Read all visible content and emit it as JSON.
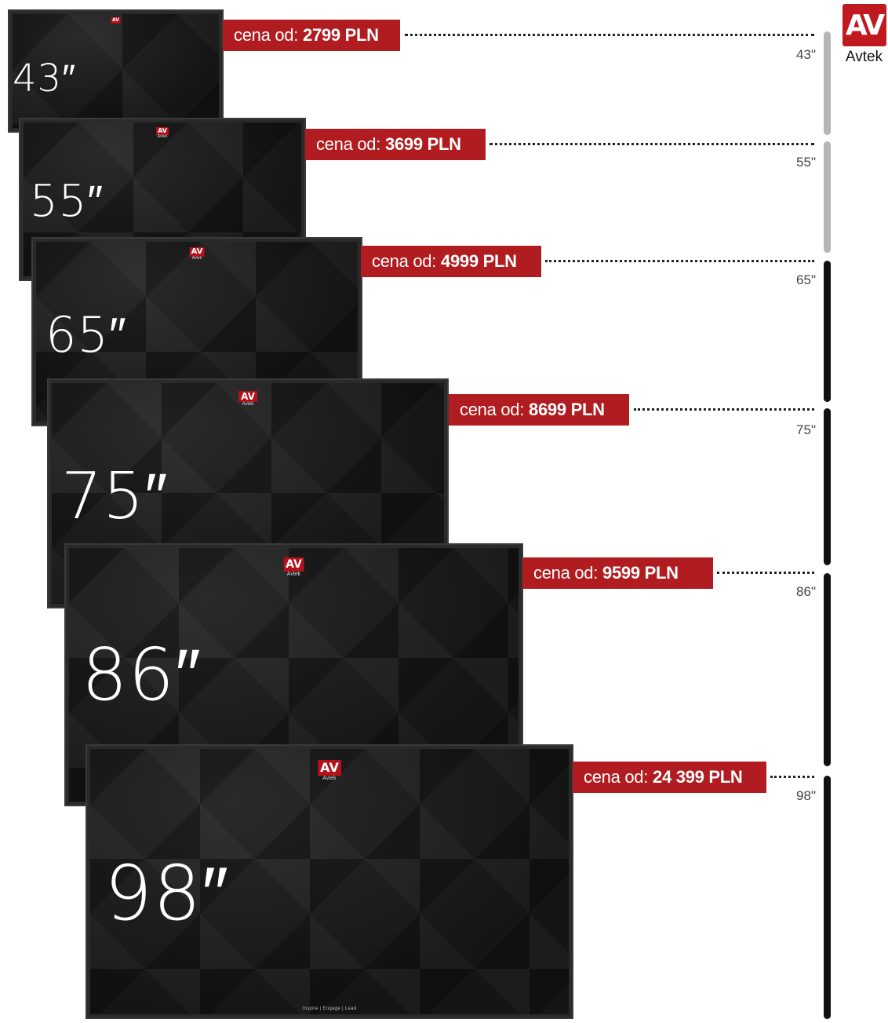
{
  "brand": {
    "logo_mark": "AV",
    "logo_word": "Avtek",
    "accent_color": "#b01c1f"
  },
  "screen_tagline": "Inspire | Engage | Lead",
  "price_prefix": "cena od:",
  "products": [
    {
      "size_label": "43″",
      "price": "2799 PLN",
      "scale_label": "43\""
    },
    {
      "size_label": "55″",
      "price": "3699 PLN",
      "scale_label": "55\""
    },
    {
      "size_label": "65″",
      "price": "4999 PLN",
      "scale_label": "65\""
    },
    {
      "size_label": "75″",
      "price": "8699 PLN",
      "scale_label": "75\""
    },
    {
      "size_label": "86″",
      "price": "9599 PLN",
      "scale_label": "86\""
    },
    {
      "size_label": "98″",
      "price": "24 399 PLN",
      "scale_label": "98\""
    }
  ]
}
